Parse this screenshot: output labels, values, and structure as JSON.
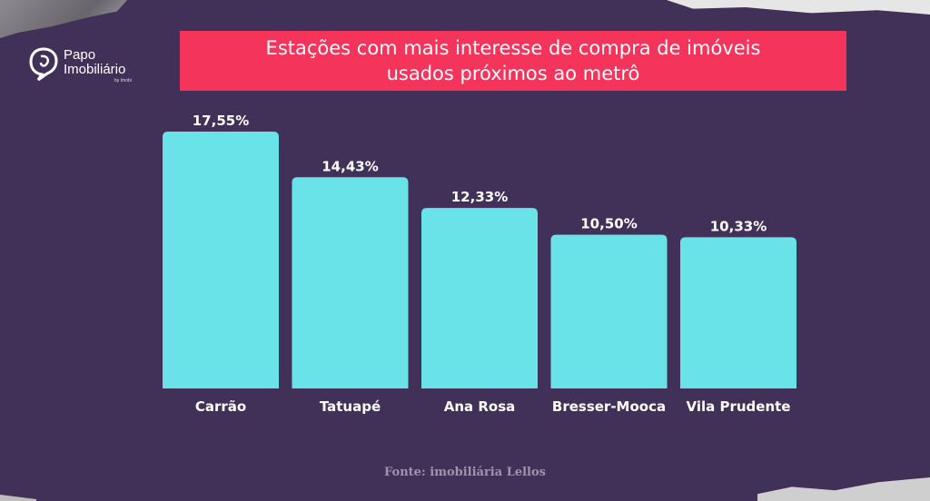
{
  "brand": {
    "name_line1": "Papo",
    "name_line2": "Imobiliário",
    "tagline": "by Imobi"
  },
  "title": {
    "line1": "Estações com mais interesse de compra de imóveis",
    "line2": "usados próximos ao metrô"
  },
  "source": "Fonte: imobiliária Lellos",
  "colors": {
    "background": "#413158",
    "title_bar": "#f4345a",
    "bars": "#6ae3e8",
    "text": "#ffffff"
  },
  "chart_data": {
    "type": "bar",
    "title": "Estações com mais interesse de compra de imóveis usados próximos ao metrô",
    "categories": [
      "Carrão",
      "Tatuapé",
      "Ana Rosa",
      "Bresser-Mooca",
      "Vila Prudente"
    ],
    "values": [
      17.55,
      14.43,
      12.33,
      10.5,
      10.33
    ],
    "value_labels": [
      "17,55%",
      "14,43%",
      "12,33%",
      "10,50%",
      "10,33%"
    ],
    "xlabel": "",
    "ylabel": "",
    "grid": false,
    "legend": "none"
  }
}
